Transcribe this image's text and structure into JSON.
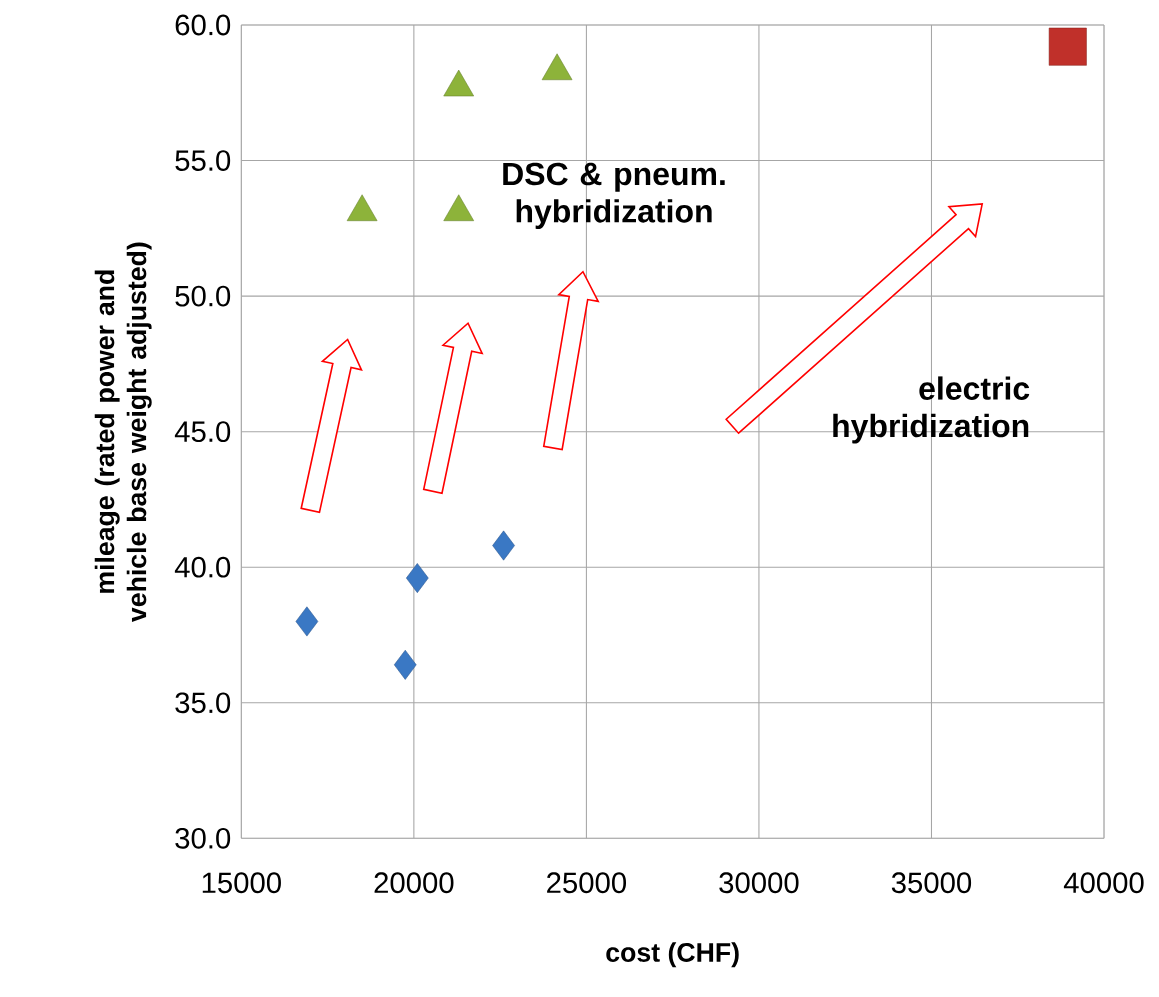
{
  "chart_data": {
    "type": "scatter",
    "xlabel": "cost (CHF)",
    "ylabel": "mileage (rated power and vehicle base weight adjusted)",
    "xlim": [
      15000,
      40000
    ],
    "xticks": [
      15000,
      20000,
      25000,
      30000,
      35000,
      40000
    ],
    "ylim": [
      30,
      60
    ],
    "yticks": [
      {
        "value": 30,
        "label": "30.0"
      },
      {
        "value": 35,
        "label": "35.0"
      },
      {
        "value": 40,
        "label": "40.0"
      },
      {
        "value": 45,
        "label": "45.0"
      },
      {
        "value": 50,
        "label": "50.0"
      },
      {
        "value": 55,
        "label": "55.0"
      },
      {
        "value": 60,
        "label": "60.0"
      }
    ],
    "grid": true,
    "series": [
      {
        "color": "#3a78c4",
        "marker": "diamond",
        "x": [
          16900,
          20100,
          19750,
          22600
        ],
        "values": [
          38.0,
          39.6,
          36.4,
          40.8
        ]
      },
      {
        "color": "#8db33a",
        "marker": "triangle",
        "x": [
          18500,
          21300,
          21300,
          24150
        ],
        "values": [
          53.1,
          53.1,
          57.7,
          58.3
        ]
      },
      {
        "color": "#c0302a",
        "marker": "square",
        "x": [
          38950
        ],
        "values": [
          59.2
        ]
      }
    ],
    "annotations": [
      "DSC & pneum. hybridization",
      "electric hybridization"
    ]
  }
}
